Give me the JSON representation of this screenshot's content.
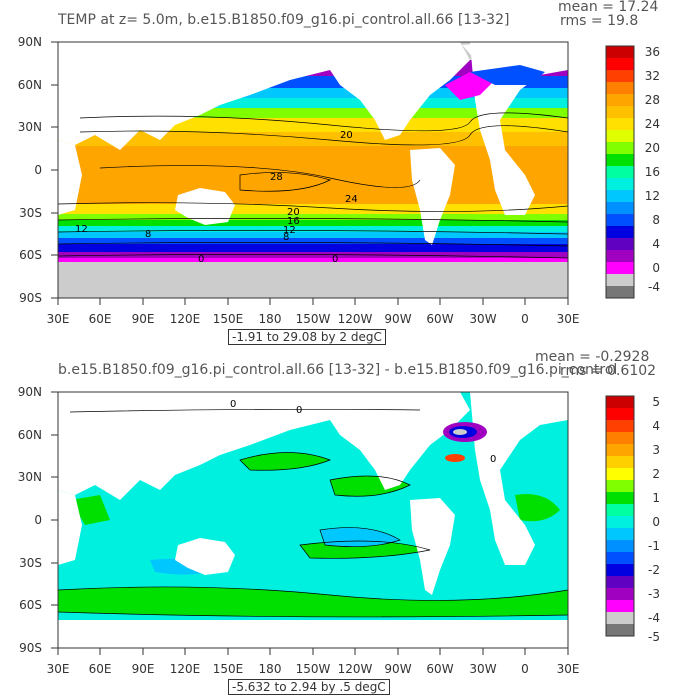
{
  "panels": [
    {
      "title": "TEMP at z=    5.0m, b.e15.B1850.f09_g16.pi_control.all.66 [13-32]",
      "mean": "mean = 17.24",
      "rms": "rms = 19.8",
      "range_label": "-1.91 to 29.08 by 2 degC",
      "lat_labels": [
        "90N",
        "60N",
        "30N",
        "0",
        "30S",
        "60S",
        "90S"
      ],
      "lon_labels": [
        "30E",
        "60E",
        "90E",
        "120E",
        "150E",
        "180",
        "150W",
        "120W",
        "90W",
        "60W",
        "30W",
        "0",
        "30E"
      ],
      "colorbar_labels": [
        "36",
        "32",
        "28",
        "24",
        "20",
        "16",
        "12",
        "8",
        "4",
        "0",
        "-4"
      ],
      "colorbar_colors": [
        "#cc0000",
        "#ff0000",
        "#ff4000",
        "#ff7f00",
        "#ffa500",
        "#ffc000",
        "#ffe000",
        "#e0ff00",
        "#80ff00",
        "#00e000",
        "#00ffa0",
        "#00f0e0",
        "#00c8ff",
        "#0090ff",
        "#0050ff",
        "#0000e0",
        "#6000c0",
        "#a000c0",
        "#ff00ff",
        "#cccccc",
        "#777777"
      ],
      "contour_labels": [
        "20",
        "28",
        "24",
        "20",
        "16",
        "12",
        "12",
        "8",
        "8",
        "0",
        "0"
      ]
    },
    {
      "title": "b.e15.B1850.f09_g16.pi_control.all.66 [13-32] - b.e15.B1850.f09_g16.pi_control",
      "mean": "mean = -0.2928",
      "rms": "rms = 0.6102",
      "range_label": "-5.632 to 2.94 by .5 degC",
      "lat_labels": [
        "90N",
        "60N",
        "30N",
        "0",
        "30S",
        "60S",
        "90S"
      ],
      "lon_labels": [
        "30E",
        "60E",
        "90E",
        "120E",
        "150E",
        "180",
        "150W",
        "120W",
        "90W",
        "60W",
        "30W",
        "0",
        "30E"
      ],
      "colorbar_labels": [
        "5",
        "4",
        "3",
        "2",
        "1",
        "0",
        "-1",
        "-2",
        "-3",
        "-4",
        "-5"
      ],
      "colorbar_colors": [
        "#cc0000",
        "#ff0000",
        "#ff4000",
        "#ff7f00",
        "#ffa500",
        "#ffd000",
        "#ffff00",
        "#80ff00",
        "#00e000",
        "#00ffa0",
        "#00f0e0",
        "#00c8ff",
        "#0090ff",
        "#0050ff",
        "#0000e0",
        "#6000c0",
        "#a000c0",
        "#ff00ff",
        "#cccccc",
        "#777777"
      ],
      "contour_labels": [
        "0",
        "0",
        "0"
      ]
    }
  ],
  "colors": {
    "land": "#ffffff",
    "ice": "#cccccc",
    "warm_ocean": "#ffa500",
    "cool_ocean": "#00f0e0",
    "contour": "#000000"
  }
}
